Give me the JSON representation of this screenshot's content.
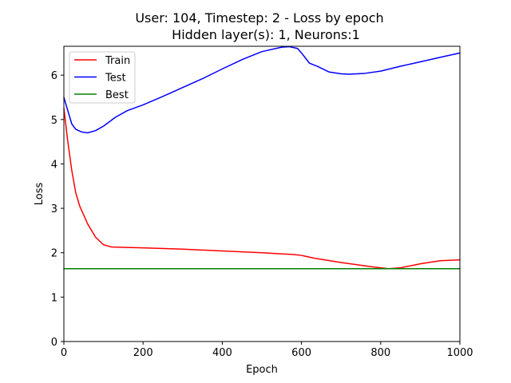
{
  "chart_data": {
    "type": "line",
    "title": "User: 104, Timestep: 2 - Loss by epoch",
    "subtitle": "Hidden layer(s): 1, Neurons:1",
    "xlabel": "Epoch",
    "ylabel": "Loss",
    "xlim": [
      0,
      1000
    ],
    "ylim": [
      0,
      6.65
    ],
    "xticks": [
      0,
      200,
      400,
      600,
      800,
      1000
    ],
    "yticks": [
      0,
      1,
      2,
      3,
      4,
      5,
      6
    ],
    "grid": false,
    "legend_position": "top-left",
    "series": [
      {
        "name": "Train",
        "color": "#ff0000",
        "x": [
          0,
          10,
          20,
          30,
          40,
          60,
          80,
          100,
          120,
          150,
          200,
          300,
          400,
          500,
          580,
          600,
          630,
          700,
          780,
          820,
          850,
          900,
          950,
          1000
        ],
        "y": [
          5.25,
          4.5,
          3.85,
          3.35,
          3.05,
          2.65,
          2.35,
          2.18,
          2.13,
          2.12,
          2.11,
          2.08,
          2.04,
          2.0,
          1.96,
          1.94,
          1.88,
          1.78,
          1.68,
          1.64,
          1.66,
          1.75,
          1.82,
          1.84
        ]
      },
      {
        "name": "Test",
        "color": "#0000ff",
        "x": [
          0,
          10,
          20,
          30,
          45,
          60,
          80,
          100,
          130,
          160,
          200,
          250,
          300,
          350,
          400,
          450,
          500,
          550,
          570,
          590,
          600,
          620,
          640,
          670,
          700,
          720,
          760,
          800,
          850,
          900,
          950,
          1000
        ],
        "y": [
          5.5,
          5.2,
          4.9,
          4.78,
          4.72,
          4.7,
          4.75,
          4.85,
          5.05,
          5.2,
          5.33,
          5.52,
          5.72,
          5.92,
          6.14,
          6.35,
          6.53,
          6.63,
          6.64,
          6.6,
          6.5,
          6.27,
          6.2,
          6.07,
          6.03,
          6.02,
          6.04,
          6.09,
          6.2,
          6.3,
          6.4,
          6.5
        ]
      },
      {
        "name": "Best",
        "color": "#008000",
        "x": [
          0,
          1000
        ],
        "y": [
          1.64,
          1.64
        ]
      }
    ]
  }
}
